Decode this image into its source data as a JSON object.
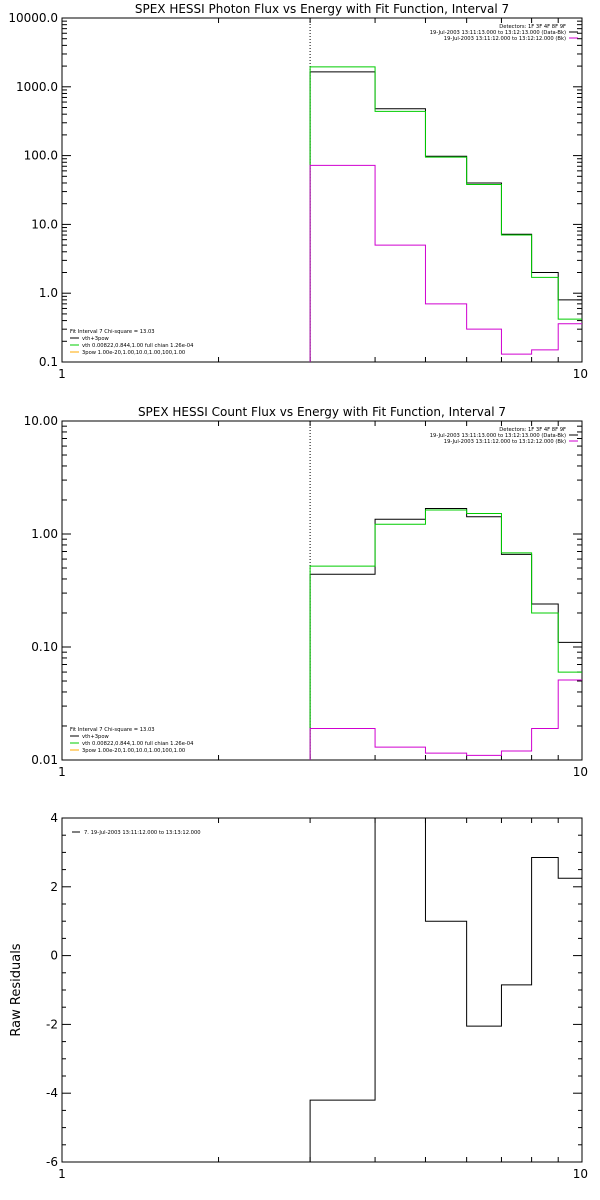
{
  "chart_data": [
    {
      "type": "line",
      "title": "SPEX HESSI Photon Flux vs Energy with Fit Function, Interval 7",
      "xlabel": "",
      "ylabel": "",
      "xscale": "log",
      "yscale": "log",
      "xlim": [
        1,
        10
      ],
      "ylim": [
        0.1,
        10000
      ],
      "x_tick_labels": [
        "1",
        "10"
      ],
      "y_ticks": [
        0.1,
        1,
        10,
        100,
        1000,
        10000
      ],
      "y_tick_labels": [
        "0.1",
        "1.0",
        "10.0",
        "100.0",
        "1000.0",
        "10000.0"
      ],
      "vline_x": 3,
      "legend_top_right": [
        "Detectors: 1F 3F 4F 8F 9F",
        "19-Jul-2003 13:11:13.000 to 13:12:13.000 (Data-Bk)",
        "19-Jul-2003 13:11:12.000 to 13:12:12.000 (Bk)"
      ],
      "legend_bottom_left": [
        "Fit Interval 7   Chi-square = 13.03",
        "vth+3pow",
        "vth 0.00822,0.844,1.00   full chian 1.26e-04",
        "3pow 1.00e-20,1.00,10.0,1.00,100,1.00"
      ],
      "edges": [
        3,
        4,
        5,
        6,
        7,
        8,
        9,
        10
      ],
      "series": [
        {
          "name": "Data-Bk",
          "color": "#000000",
          "values": [
            1650,
            480,
            98,
            40,
            7.2,
            2.0,
            0.8
          ]
        },
        {
          "name": "vth+3pow",
          "color": "#00cc00",
          "values": [
            1950,
            440,
            95,
            38,
            7.0,
            1.7,
            0.42
          ]
        },
        {
          "name": "Bk",
          "color": "#d000d0",
          "values": [
            72,
            5.0,
            0.7,
            0.3,
            0.13,
            0.15,
            0.36
          ]
        }
      ]
    },
    {
      "type": "line",
      "title": "SPEX HESSI Count Flux vs Energy with Fit Function, Interval 7",
      "xlabel": "",
      "ylabel": "",
      "xscale": "log",
      "yscale": "log",
      "xlim": [
        1,
        10
      ],
      "ylim": [
        0.01,
        10
      ],
      "x_tick_labels": [
        "1",
        "10"
      ],
      "y_ticks": [
        0.01,
        0.1,
        1,
        10
      ],
      "y_tick_labels": [
        "0.01",
        "0.10",
        "1.00",
        "10.00"
      ],
      "vline_x": 3,
      "legend_top_right": [
        "Detectors: 1F 3F 4F 8F 9F",
        "19-Jul-2003 13:11:13.000 to 13:12:13.000 (Data-Bk)",
        "19-Jul-2003 13:11:12.000 to 13:12:12.000 (Bk)"
      ],
      "legend_bottom_left": [
        "Fit Interval 7   Chi-square = 13.03",
        "vth+3pow",
        "vth 0.00822,0.844,1.00   full chian 1.26e-04",
        "3pow 1.00e-20,1.00,10.0,1.00,100,1.00"
      ],
      "edges": [
        3,
        4,
        5,
        6,
        7,
        8,
        9,
        10
      ],
      "series": [
        {
          "name": "Data-Bk",
          "color": "#000000",
          "values": [
            0.44,
            1.35,
            1.68,
            1.42,
            0.66,
            0.24,
            0.11
          ]
        },
        {
          "name": "vth+3pow",
          "color": "#00cc00",
          "values": [
            0.52,
            1.22,
            1.63,
            1.52,
            0.68,
            0.2,
            0.06
          ]
        },
        {
          "name": "Bk",
          "color": "#d000d0",
          "values": [
            0.019,
            0.013,
            0.0115,
            0.011,
            0.012,
            0.019,
            0.051
          ]
        }
      ]
    },
    {
      "type": "line",
      "title": "",
      "xlabel": "",
      "ylabel": "Raw Residuals",
      "xscale": "log",
      "yscale": "linear",
      "xlim": [
        1,
        10
      ],
      "ylim": [
        -6,
        4
      ],
      "x_tick_labels": [
        "1",
        "10"
      ],
      "y_ticks": [
        -6,
        -4,
        -2,
        0,
        2,
        4
      ],
      "y_tick_labels": [
        "-6",
        "-4",
        "-2",
        "0",
        "2",
        "4"
      ],
      "legend_top_left": "7. 19-Jul-2003 13:11:12.000 to 13:13:12.000",
      "edges": [
        3,
        4,
        5,
        6,
        7,
        8,
        9,
        10
      ],
      "series": [
        {
          "color": "#000000",
          "values": [
            -4.2,
            4.0,
            1.0,
            -2.05,
            -0.85,
            2.85,
            2.25
          ]
        }
      ]
    }
  ]
}
